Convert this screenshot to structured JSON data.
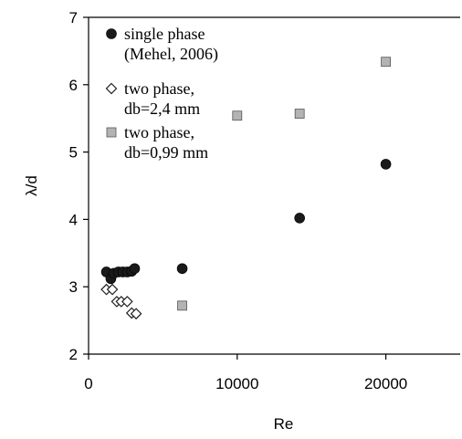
{
  "chart_data": {
    "type": "scatter",
    "xlabel": "Re",
    "ylabel": "λ/d",
    "xlim": [
      0,
      25000
    ],
    "ylim": [
      2,
      7
    ],
    "x_ticks": [
      0,
      10000,
      20000
    ],
    "y_ticks": [
      2,
      3,
      4,
      5,
      6,
      7
    ],
    "grid": false,
    "legend_position": "top-left",
    "series": [
      {
        "name": "single phase (Mehel, 2006)",
        "legend_lines": [
          "single phase",
          "(Mehel, 2006)"
        ],
        "marker": "filled-circle",
        "color": "#1a1a1a",
        "points": [
          {
            "x": 1200,
            "y": 3.22
          },
          {
            "x": 1500,
            "y": 3.12
          },
          {
            "x": 1700,
            "y": 3.2
          },
          {
            "x": 2000,
            "y": 3.22
          },
          {
            "x": 2300,
            "y": 3.22
          },
          {
            "x": 2600,
            "y": 3.22
          },
          {
            "x": 2900,
            "y": 3.23
          },
          {
            "x": 3100,
            "y": 3.27
          },
          {
            "x": 6300,
            "y": 3.27
          },
          {
            "x": 14200,
            "y": 4.02
          },
          {
            "x": 20000,
            "y": 4.82
          }
        ]
      },
      {
        "name": "two phase, db=2,4 mm",
        "legend_lines": [
          "two phase,",
          "db=2,4 mm"
        ],
        "marker": "open-diamond",
        "color": "#444444",
        "points": [
          {
            "x": 1200,
            "y": 2.96
          },
          {
            "x": 1600,
            "y": 2.96
          },
          {
            "x": 1900,
            "y": 2.78
          },
          {
            "x": 2200,
            "y": 2.78
          },
          {
            "x": 2600,
            "y": 2.78
          },
          {
            "x": 2900,
            "y": 2.61
          },
          {
            "x": 3200,
            "y": 2.6
          }
        ]
      },
      {
        "name": "two phase, db=0,99 mm",
        "legend_lines": [
          "two phase,",
          "db=0,99 mm"
        ],
        "marker": "gray-square",
        "color": "#b3b3b3",
        "points": [
          {
            "x": 6300,
            "y": 2.72
          },
          {
            "x": 10000,
            "y": 5.54
          },
          {
            "x": 14200,
            "y": 5.57
          },
          {
            "x": 20000,
            "y": 6.34
          }
        ]
      }
    ]
  }
}
